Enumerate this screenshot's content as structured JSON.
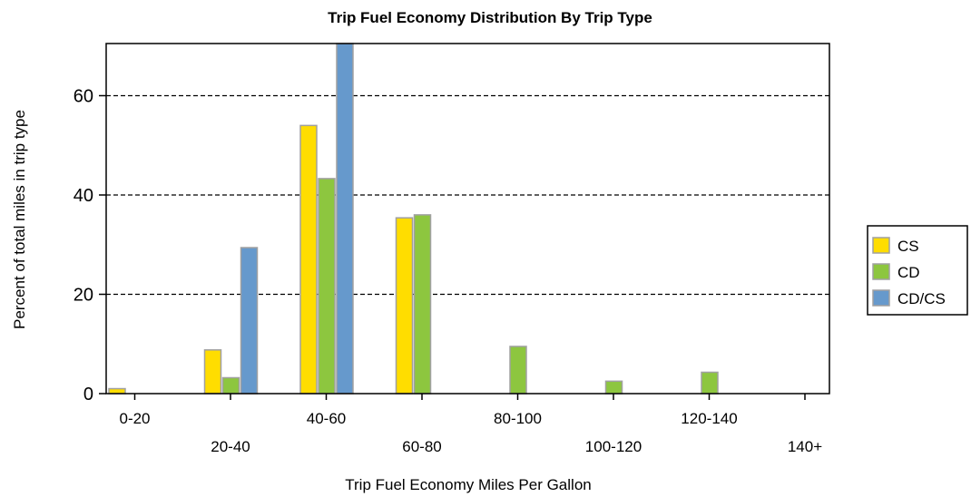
{
  "chart_data": {
    "type": "bar",
    "title": "Trip Fuel Economy Distribution By Trip Type",
    "xlabel": "Trip Fuel Economy Miles Per Gallon",
    "ylabel": "Percent of total miles in trip type",
    "categories": [
      "0-20",
      "20-40",
      "40-60",
      "60-80",
      "80-100",
      "100-120",
      "120-140",
      "140+"
    ],
    "yticks": [
      0,
      20,
      40,
      60
    ],
    "ylim": [
      0,
      70.5
    ],
    "grid": "horizontal dashed at 20, 40, 60",
    "legend_position": "right",
    "series": [
      {
        "name": "CS",
        "color": "#FFDD00",
        "values": [
          1.0,
          8.8,
          54.0,
          35.4,
          0,
          0,
          0,
          0
        ]
      },
      {
        "name": "CD",
        "color": "#8DC63F",
        "values": [
          0,
          3.2,
          43.3,
          36.0,
          9.5,
          2.5,
          4.3,
          0
        ]
      },
      {
        "name": "CD/CS",
        "color": "#6699CC",
        "values": [
          0,
          29.4,
          70.7,
          0,
          0,
          0,
          0,
          0
        ]
      }
    ]
  }
}
